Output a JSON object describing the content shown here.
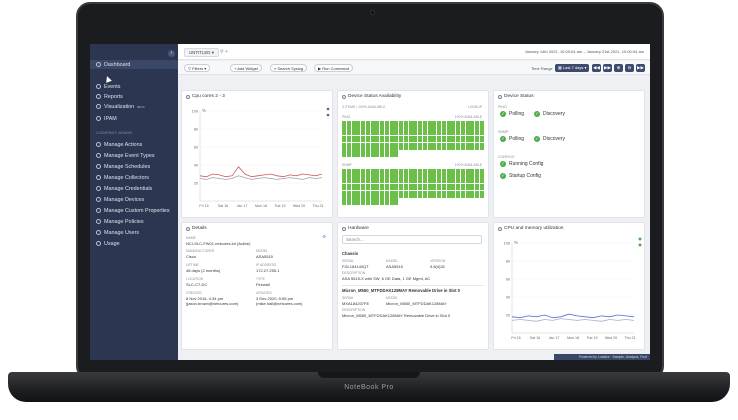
{
  "device": {
    "brand": "NoteBook Pro"
  },
  "sidebar": {
    "items_top": [
      {
        "label": "Dashboard",
        "icon": "dashboard-icon"
      },
      {
        "label": "Events",
        "icon": "bell-icon"
      },
      {
        "label": "Reports",
        "icon": "report-icon"
      },
      {
        "label": "Visualization",
        "icon": "chart-icon",
        "badge": "BETA"
      },
      {
        "label": "IPAM",
        "icon": "network-icon"
      }
    ],
    "section": "COMPANY ADMIN",
    "items_admin": [
      {
        "label": "Manage Actions",
        "icon": "actions-icon"
      },
      {
        "label": "Manage Event Types",
        "icon": "event-types-icon"
      },
      {
        "label": "Manage Schedules",
        "icon": "calendar-icon"
      },
      {
        "label": "Manage Collectors",
        "icon": "collector-icon"
      },
      {
        "label": "Manage Credentials",
        "icon": "key-icon"
      },
      {
        "label": "Manage Devices",
        "icon": "device-icon"
      },
      {
        "label": "Manage Custom Properties",
        "icon": "properties-icon"
      },
      {
        "label": "Manage Policies",
        "icon": "policy-icon"
      },
      {
        "label": "Manage Users",
        "icon": "users-icon"
      },
      {
        "label": "Usage",
        "icon": "usage-icon"
      }
    ]
  },
  "topbar": {
    "tab": "UNTITLED",
    "date_range": "January 14th 2021, 10:00:04 am – January 21st 2021, 10:00:04 am"
  },
  "toolbar": {
    "filters": "Filters",
    "add_widget": "+ Add Widget",
    "search_syslog": "Search Syslog",
    "run_command": "Run Command",
    "time_range_label": "Time Range",
    "time_range_value": "Last 7 days"
  },
  "cpu": {
    "title": "Cpu cores 2 - 3",
    "unit": "%",
    "chart_data": {
      "type": "line",
      "ylim": [
        0,
        100
      ],
      "yticks": [
        "100",
        "80",
        "60",
        "40",
        "20"
      ],
      "xticks": [
        "Fri 15",
        "Sat 16",
        "Jan 17",
        "Mon 18",
        "Tue 19",
        "Wed 20",
        "Thu 21"
      ],
      "series": [
        {
          "color": "#c95c5c",
          "values": [
            28,
            27,
            30,
            29,
            27,
            28,
            38,
            30,
            27,
            28,
            29,
            30,
            28,
            27,
            29,
            28,
            30,
            29,
            28,
            30
          ]
        },
        {
          "color": "#9aa0ad",
          "values": [
            25,
            24,
            26,
            25,
            24,
            25,
            28,
            26,
            24,
            25,
            26,
            25,
            24,
            25,
            26,
            25,
            24,
            26,
            25,
            26
          ]
        }
      ]
    }
  },
  "availability": {
    "title": "Device Status Availability",
    "header": "3 ITEMS • 100% AVAILABLE",
    "lookup": "LOOKUP",
    "groups": [
      {
        "label": "PING",
        "percent": "100% AVAILABLE"
      },
      {
        "label": "SNMP",
        "percent": "100% AVAILABLE"
      }
    ]
  },
  "status": {
    "title": "Device Status",
    "groups": [
      {
        "label": "PING",
        "items": [
          "Polling",
          "Discovery"
        ]
      },
      {
        "label": "SNMP",
        "items": [
          "Polling",
          "Discovery"
        ]
      },
      {
        "label": "CONFIGS",
        "items": [
          "Running Config",
          "Startup Config"
        ]
      }
    ]
  },
  "details": {
    "title": "Details",
    "name_label": "NAME",
    "name_value": "NCI-SLC-FW01.netcures.int (Active)",
    "fields": [
      {
        "label": "MANUFACTURER",
        "value": "Cisco"
      },
      {
        "label": "MODEL",
        "value": "ASA5515"
      },
      {
        "label": "UPTIME",
        "value": "48 days (2 months)"
      },
      {
        "label": "IP ADDRESS",
        "value": "172.27.255.1"
      },
      {
        "label": "LOCATION",
        "value": "SLC-C7-DC"
      },
      {
        "label": "TYPE",
        "value": "Firewall"
      },
      {
        "label": "CREATED",
        "value": "8 Nov 2016, 4:34 pm"
      },
      {
        "label": "UPDATED",
        "value": "3 Dec 2020, 5:55 pm"
      },
      {
        "label": "",
        "value": "(jason.brown@netcures.com)"
      },
      {
        "label": "",
        "value": "(mike.hall@netcures.com)"
      }
    ]
  },
  "hardware": {
    "title": "Hardware",
    "search_placeholder": "Search...",
    "chassis_title": "Chassis",
    "chassis": {
      "serial_label": "SERIAL",
      "serial": "FGL164140QT",
      "model_label": "MODEL",
      "model": "ASA5515",
      "version_label": "VERSION",
      "version": "9.8(4)32",
      "desc_label": "DESCRIPTION",
      "desc": "ASA 5515-X with SW, 6 GE Data, 1 GE Mgmt, AC"
    },
    "drive_title": "Micron_M550_MTFDDAK128MAY Removable Drive in Slot 0",
    "drive": {
      "serial_label": "SERIAL",
      "serial": "MXA184207FE",
      "model_label": "MODEL",
      "model": "Micron_M550_MTFDDAK128MAY",
      "desc_label": "DESCRIPTION",
      "desc": "Micron_M550_MTFDDAK128MAY Removable Drive in Slot 0"
    }
  },
  "memory": {
    "title": "CPU and memory utilization",
    "unit": "%",
    "chart_data": {
      "type": "line",
      "ylim": [
        0,
        100
      ],
      "yticks": [
        "100",
        "80",
        "60",
        "40",
        "20"
      ],
      "xticks": [
        "Fri 15",
        "Sat 16",
        "Jan 17",
        "Mon 18",
        "Tue 19",
        "Wed 20",
        "Thu 21"
      ],
      "series": [
        {
          "color": "#5b6bd8",
          "values": [
            18,
            17,
            19,
            18,
            20,
            17,
            18,
            21,
            19,
            18,
            17,
            19,
            18,
            20,
            19,
            18
          ]
        },
        {
          "color": "#a6adc6",
          "values": [
            14,
            15,
            14,
            13,
            15,
            14,
            16,
            15,
            14,
            15,
            14,
            13,
            15,
            14,
            15,
            14
          ]
        }
      ]
    }
  },
  "footer": {
    "powered": "Powered by Loadics · Sample, Analysis, Foot"
  }
}
